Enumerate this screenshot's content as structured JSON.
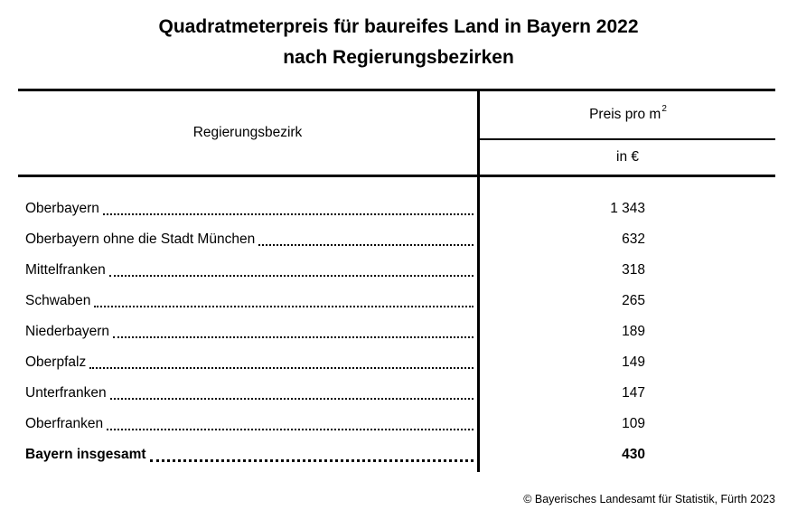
{
  "title": {
    "line1": "Quadratmeterpreis für baureifes Land in Bayern 2022",
    "line2": "nach Regierungsbezirken"
  },
  "table": {
    "col1_header": "Regierungsbezirk",
    "col2_header": {
      "line1_base": "Preis pro m",
      "line1_sup": "2",
      "line2": "in €"
    },
    "rows": [
      {
        "label": "Oberbayern",
        "value": "1 343",
        "bold": false
      },
      {
        "label": "Oberbayern ohne die Stadt München",
        "value": "632",
        "bold": false
      },
      {
        "label": "Mittelfranken",
        "value": "318",
        "bold": false
      },
      {
        "label": "Schwaben",
        "value": "265",
        "bold": false
      },
      {
        "label": "Niederbayern",
        "value": "189",
        "bold": false
      },
      {
        "label": "Oberpfalz",
        "value": "149",
        "bold": false
      },
      {
        "label": "Unterfranken",
        "value": "147",
        "bold": false
      },
      {
        "label": "Oberfranken",
        "value": "109",
        "bold": false
      },
      {
        "label": "Bayern insgesamt",
        "value": "430",
        "bold": true
      }
    ]
  },
  "footer": {
    "copyright": "© Bayerisches Landesamt für Statistik, Fürth 2023"
  },
  "colors": {
    "background": "#ffffff",
    "text": "#000000",
    "line": "#000000"
  }
}
